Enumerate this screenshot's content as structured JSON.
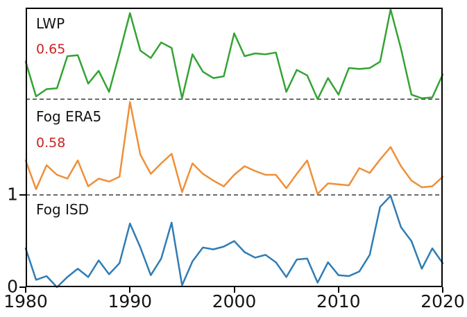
{
  "figure_background": "#ffffff",
  "colors": {
    "lwp_line": "#33a333",
    "fog_era5_line": "#ee8f38",
    "fog_isd_line": "#2f7cb5",
    "correlation_text": "#cc2222",
    "axis_text": "#141414",
    "separator_line": "#3a3a3a",
    "frame": "#000000"
  },
  "chart_data": {
    "type": "line",
    "title": "",
    "xlabel": "",
    "ylabel": "",
    "xlim": [
      1980,
      2020
    ],
    "xticks": [
      "1980",
      "1990",
      "2000",
      "2010",
      "2020"
    ],
    "yticks": [
      {
        "label": "1",
        "value": 1
      },
      {
        "label": "0",
        "value": 0
      }
    ],
    "grid": false,
    "legend_position": "labels annotated inside each panel, top-left",
    "panels_top_to_bottom": [
      "LWP",
      "Fog ERA5",
      "Fog ISD"
    ],
    "panel_value_range": [
      0,
      1
    ],
    "separator_style": "dashed",
    "annotation_color": "#cc2222",
    "x": [
      1980,
      1981,
      1982,
      1983,
      1984,
      1985,
      1986,
      1987,
      1988,
      1989,
      1990,
      1991,
      1992,
      1993,
      1994,
      1995,
      1996,
      1997,
      1998,
      1999,
      2000,
      2001,
      2002,
      2003,
      2004,
      2005,
      2006,
      2007,
      2008,
      2009,
      2010,
      2011,
      2012,
      2013,
      2014,
      2015,
      2016,
      2017,
      2018,
      2019,
      2020
    ],
    "series": [
      {
        "name": "LWP",
        "correlation_label": "0.65",
        "color": "#33a333",
        "values": [
          0.41,
          0.03,
          0.11,
          0.12,
          0.47,
          0.48,
          0.17,
          0.31,
          0.08,
          0.5,
          0.94,
          0.53,
          0.45,
          0.62,
          0.56,
          0.01,
          0.49,
          0.3,
          0.23,
          0.25,
          0.72,
          0.47,
          0.5,
          0.49,
          0.51,
          0.08,
          0.32,
          0.26,
          0.0,
          0.23,
          0.05,
          0.34,
          0.33,
          0.34,
          0.41,
          0.98,
          0.55,
          0.05,
          0.01,
          0.02,
          0.27
        ]
      },
      {
        "name": "Fog ERA5",
        "correlation_label": "0.58",
        "color": "#ee8f38",
        "values": [
          0.36,
          0.06,
          0.31,
          0.21,
          0.17,
          0.36,
          0.09,
          0.17,
          0.14,
          0.19,
          0.97,
          0.42,
          0.22,
          0.33,
          0.43,
          0.03,
          0.33,
          0.22,
          0.15,
          0.09,
          0.21,
          0.3,
          0.25,
          0.21,
          0.21,
          0.07,
          0.22,
          0.36,
          0.01,
          0.12,
          0.11,
          0.1,
          0.28,
          0.23,
          0.37,
          0.5,
          0.3,
          0.15,
          0.08,
          0.09,
          0.19
        ]
      },
      {
        "name": "Fog ISD",
        "correlation_label": "",
        "color": "#2f7cb5",
        "values": [
          0.42,
          0.08,
          0.12,
          0.0,
          0.11,
          0.2,
          0.11,
          0.29,
          0.14,
          0.26,
          0.69,
          0.43,
          0.13,
          0.31,
          0.7,
          0.02,
          0.28,
          0.43,
          0.41,
          0.44,
          0.5,
          0.38,
          0.32,
          0.35,
          0.27,
          0.11,
          0.3,
          0.31,
          0.05,
          0.27,
          0.13,
          0.12,
          0.17,
          0.35,
          0.87,
          0.99,
          0.65,
          0.5,
          0.2,
          0.42,
          0.26
        ]
      }
    ]
  }
}
